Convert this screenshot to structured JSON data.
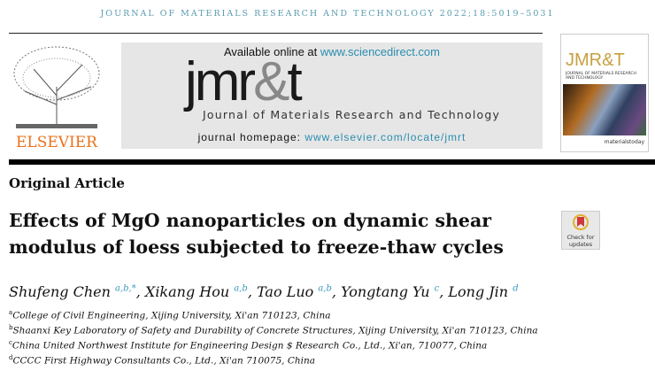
{
  "running_head": "JOURNAL OF MATERIALS RESEARCH AND TECHNOLOGY 2022;18:5019–5031",
  "banner": {
    "available_prefix": "Available online at ",
    "available_link": "www.sciencedirect.com",
    "logo_a": "jmr",
    "logo_amp": "&",
    "logo_b": "t",
    "journal_name": "Journal of Materials Research and Technology",
    "homepage_prefix": "journal homepage: ",
    "homepage_link": "www.elsevier.com/locate/jmrt"
  },
  "publisher_logo": "ELSEVIER",
  "cover": {
    "title": "JMR&T",
    "subtitle": "JOURNAL OF MATERIALS RESEARCH AND TECHNOLOGY",
    "footer": "materialstoday"
  },
  "article_type": "Original Article",
  "title": "Effects of MgO nanoparticles on dynamic shear modulus of loess subjected to freeze-thaw cycles",
  "check_updates": {
    "line1": "Check for",
    "line2": "updates"
  },
  "authors": [
    {
      "name": "Shufeng Chen",
      "aff": "a,b,*"
    },
    {
      "name": "Xikang Hou",
      "aff": "a,b"
    },
    {
      "name": "Tao Luo",
      "aff": "a,b"
    },
    {
      "name": "Yongtang Yu",
      "aff": "c"
    },
    {
      "name": "Long Jin",
      "aff": "d"
    }
  ],
  "affiliations": [
    {
      "key": "a",
      "text": "College of Civil Engineering, Xijing University, Xi'an 710123, China"
    },
    {
      "key": "b",
      "text": "Shaanxi Key Laboratory of Safety and Durability of Concrete Structures, Xijing University, Xi'an 710123, China"
    },
    {
      "key": "c",
      "text": "China United Northwest Institute for Engineering Design $ Research Co., Ltd., Xi'an, 710077, China"
    },
    {
      "key": "d",
      "text": "CCCC First Highway Consultants Co., Ltd., Xi'an 710075, China"
    }
  ],
  "colors": {
    "link": "#2a8db0",
    "elsevier_orange": "#e9711c"
  }
}
